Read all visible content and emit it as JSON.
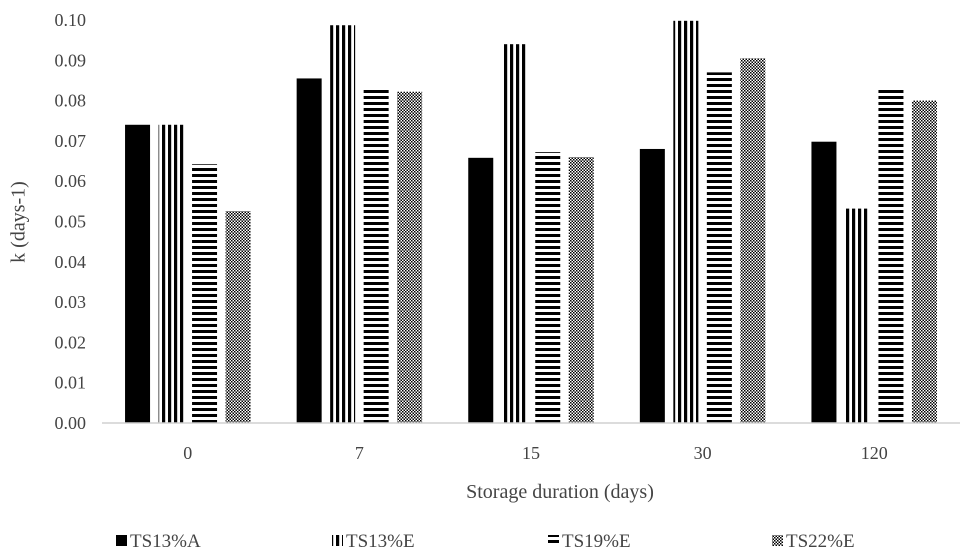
{
  "chart_data": {
    "type": "bar",
    "title": "",
    "xlabel": "Storage duration (days)",
    "ylabel": "k (days-1)",
    "ylim": [
      0,
      0.1
    ],
    "yticks": [
      "0.00",
      "0.01",
      "0.02",
      "0.03",
      "0.04",
      "0.05",
      "0.06",
      "0.07",
      "0.08",
      "0.09",
      "0.10"
    ],
    "categories": [
      "0",
      "7",
      "15",
      "30",
      "120"
    ],
    "legend_position": "bottom",
    "grid": false,
    "series": [
      {
        "name": "TS13%A",
        "pattern": "solid",
        "values": [
          0.074,
          0.0855,
          0.0658,
          0.068,
          0.0698
        ]
      },
      {
        "name": "TS13%E",
        "pattern": "vertical-stripes",
        "values": [
          0.074,
          0.0987,
          0.094,
          0.0998,
          0.0532
        ]
      },
      {
        "name": "TS19%E",
        "pattern": "horizontal-stripes",
        "values": [
          0.0642,
          0.083,
          0.0672,
          0.087,
          0.083
        ]
      },
      {
        "name": "TS22%E",
        "pattern": "dots",
        "values": [
          0.0526,
          0.0822,
          0.066,
          0.0905,
          0.08
        ]
      }
    ]
  }
}
